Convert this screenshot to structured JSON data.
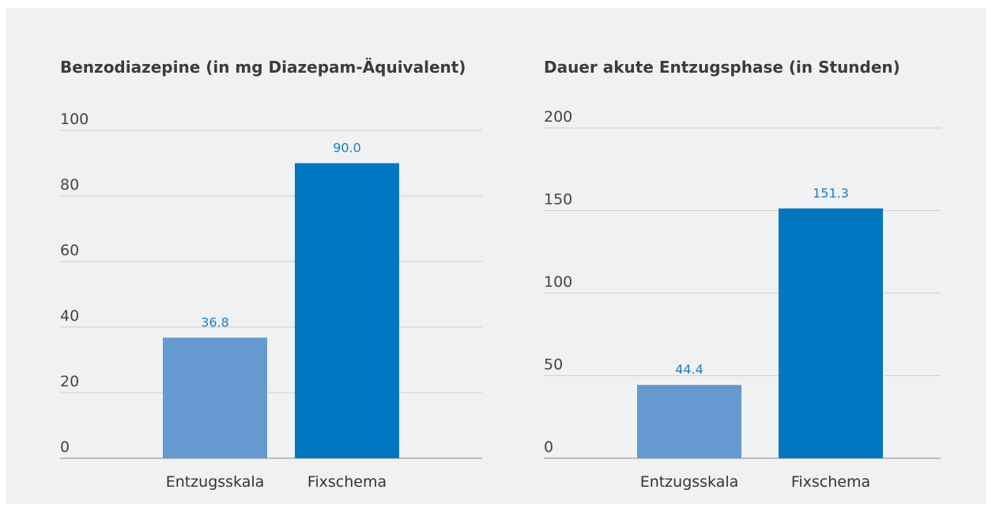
{
  "chart_data": [
    {
      "type": "bar",
      "title": "Benzodiazepine (in mg Diazepam-Äquivalent)",
      "categories": [
        "Entzugsskala",
        "Fixschema"
      ],
      "values": [
        36.8,
        90
      ],
      "value_labels": [
        "36.8",
        "90.0"
      ],
      "colors": [
        "#6699d0",
        "#0077c0"
      ],
      "ylim": [
        0,
        100
      ],
      "yticks": [
        0,
        20,
        40,
        60,
        80,
        100
      ],
      "grid": true
    },
    {
      "type": "bar",
      "title": "Dauer akute Entzugsphase (in Stunden)",
      "categories": [
        "Entzugsskala",
        "Fixschema"
      ],
      "values": [
        44.4,
        151.3
      ],
      "value_labels": [
        "44.4",
        "151.3"
      ],
      "colors": [
        "#6699d0",
        "#0077c0"
      ],
      "ylim": [
        0,
        200
      ],
      "yticks": [
        0,
        50,
        100,
        150,
        200
      ],
      "grid": true
    }
  ]
}
